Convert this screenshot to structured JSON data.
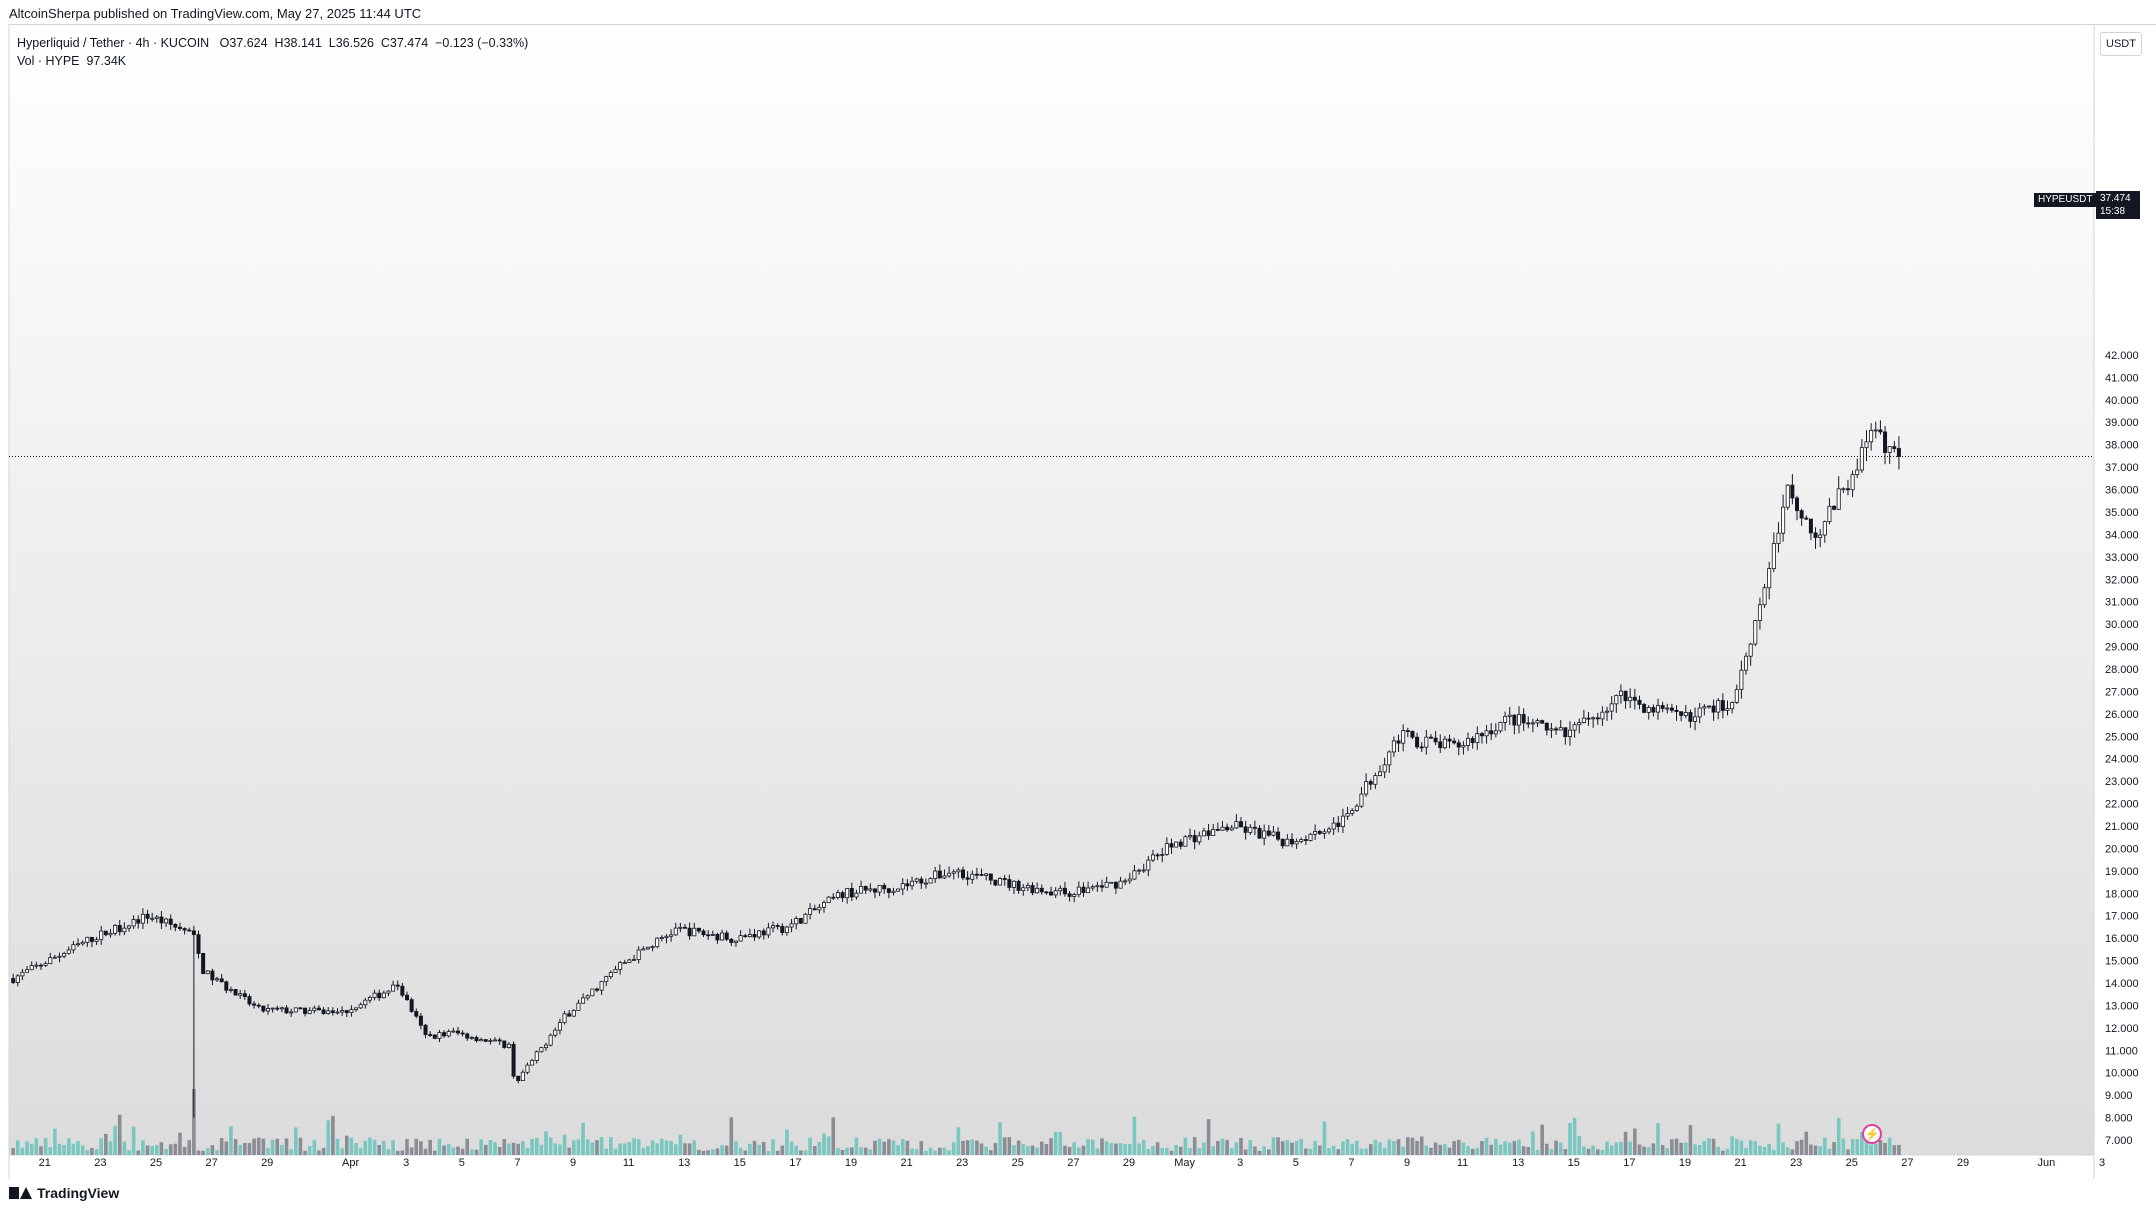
{
  "header": {
    "publisher_line": "AltcoinSherpa published on TradingView.com, May 27, 2025 11:44 UTC"
  },
  "legend": {
    "symbol": "Hyperliquid / Tether · 4h · KUCOIN",
    "open": "O37.624",
    "high": "H38.141",
    "low": "L36.526",
    "close": "C37.474",
    "change": "−0.123 (−0.33%)",
    "volume_label": "Vol · HYPE",
    "volume_value": "97.34K"
  },
  "price_axis": {
    "unit": "USDT",
    "last_symbol": "HYPEUSDT",
    "last_price": "37.474",
    "countdown": "15:38"
  },
  "footer": {
    "brand": "TradingView"
  },
  "colors": {
    "candle": "#131722",
    "volume_up": "#7ac6c0",
    "volume_down": "#8a8d94",
    "background_top": "#ffffff",
    "background_bottom": "#dcdcdc"
  },
  "icons": [
    "tradingview-logo-icon",
    "event-lightning-icon"
  ],
  "chart_data": {
    "type": "candlestick",
    "interval": "4h",
    "x_labels": [
      "21",
      "23",
      "25",
      "27",
      "29",
      "Apr",
      "3",
      "5",
      "7",
      "9",
      "11",
      "13",
      "15",
      "17",
      "19",
      "21",
      "23",
      "25",
      "27",
      "29",
      "May",
      "3",
      "5",
      "7",
      "9",
      "11",
      "13",
      "15",
      "17",
      "19",
      "21",
      "23",
      "25",
      "27",
      "29",
      "Jun",
      "3"
    ],
    "y_ticks": [
      "7.000",
      "8.000",
      "9.000",
      "10.000",
      "11.000",
      "12.000",
      "13.000",
      "14.000",
      "15.000",
      "16.000",
      "17.000",
      "18.000",
      "19.000",
      "20.000",
      "21.000",
      "22.000",
      "23.000",
      "24.000",
      "25.000",
      "26.000",
      "27.000",
      "28.000",
      "29.000",
      "30.000",
      "31.000",
      "32.000",
      "33.000",
      "34.000",
      "35.000",
      "36.000",
      "37.000",
      "38.000",
      "39.000",
      "40.000",
      "41.000",
      "42.000"
    ],
    "ylim": [
      6.5,
      42.5
    ],
    "price_path": {
      "dates": [
        "21",
        "23",
        "25",
        "26",
        "26.6",
        "27",
        "29",
        "Apr",
        "3",
        "4",
        "5",
        "7",
        "7.2",
        "9",
        "11",
        "13",
        "15",
        "17",
        "19",
        "21",
        "23",
        "25",
        "27",
        "29",
        "May",
        "3",
        "5",
        "7",
        "9",
        "11",
        "13",
        "15",
        "17",
        "19",
        "21",
        "22",
        "23",
        "24",
        "25",
        "26",
        "27"
      ],
      "close": [
        14.2,
        16.0,
        17.0,
        16.5,
        16.2,
        14.5,
        12.8,
        12.7,
        13.9,
        11.6,
        11.8,
        11.2,
        9.5,
        12.5,
        14.8,
        16.4,
        16.0,
        16.5,
        18.0,
        18.3,
        19.0,
        18.4,
        18.0,
        18.5,
        20.3,
        21.0,
        20.3,
        21.2,
        25.0,
        24.5,
        25.8,
        25.0,
        26.8,
        25.8,
        26.5,
        31.0,
        36.0,
        34.0,
        36.0,
        38.5,
        37.474
      ]
    },
    "volume_spike_date": "26.6"
  }
}
